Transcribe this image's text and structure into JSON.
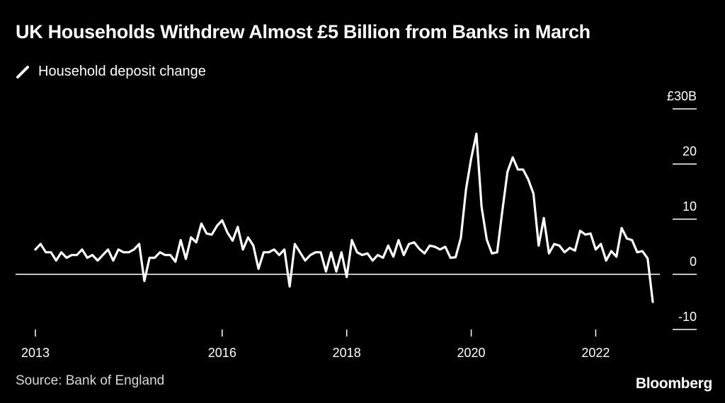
{
  "header": {
    "title": "UK Households Withdrew Almost £5 Billion from Banks in March"
  },
  "legend": {
    "label": "Household deposit change"
  },
  "footer": {
    "source": "Source: Bank of England",
    "brand": "Bloomberg"
  },
  "colors": {
    "background": "#000000",
    "line": "#ffffff",
    "text": "#ffffff"
  },
  "chart_data": {
    "type": "line",
    "title": "UK Households Withdrew Almost £5 Billion from Banks in March",
    "xlabel": "",
    "ylabel": "",
    "y_unit": "£ billions",
    "ylim": [
      -10,
      30
    ],
    "y_ticks": [
      {
        "value": 30,
        "label": "£30B"
      },
      {
        "value": 20,
        "label": "20"
      },
      {
        "value": 10,
        "label": "10"
      },
      {
        "value": 0,
        "label": "0"
      },
      {
        "value": -10,
        "label": "-10"
      }
    ],
    "x_ticks": [
      {
        "value": 2013.0,
        "label": "2013"
      },
      {
        "value": 2016.0,
        "label": "2016"
      },
      {
        "value": 2018.0,
        "label": "2018"
      },
      {
        "value": 2020.0,
        "label": "2020"
      },
      {
        "value": 2022.0,
        "label": "2022"
      }
    ],
    "x_start": 2013.0,
    "x_step_years": 0.08333,
    "series": [
      {
        "name": "Household deposit change",
        "values": [
          4.5,
          5.5,
          4,
          4,
          2.5,
          4,
          3,
          3.5,
          3.5,
          4.5,
          3,
          3.5,
          2.5,
          3.5,
          4.5,
          2.5,
          4.5,
          4,
          4,
          4.5,
          5.5,
          -1.2,
          3,
          3,
          4,
          3.5,
          3.5,
          2.3,
          6.2,
          2.8,
          6.7,
          5.8,
          9.2,
          7.4,
          7.2,
          8.8,
          9.8,
          7.6,
          6.1,
          8.6,
          4.5,
          6.7,
          5.2,
          1,
          4,
          4,
          4.5,
          3.5,
          4.5,
          -2.2,
          5.5,
          4,
          2.5,
          3.5,
          4,
          4,
          0.5,
          4,
          0.5,
          4,
          -0.5,
          6.2,
          4,
          3.5,
          3.8,
          2.5,
          3.5,
          3,
          5.2,
          3.2,
          6.2,
          3.5,
          5.5,
          5.8,
          4.6,
          3.8,
          5.2,
          5,
          4.5,
          5,
          3,
          3.1,
          6.6,
          15.4,
          21,
          25.5,
          12.2,
          6.3,
          3.8,
          4,
          11.5,
          18.6,
          21.2,
          19,
          19,
          17.2,
          14.6,
          5.2,
          10.2,
          3.8,
          5.5,
          5.2,
          4,
          4.8,
          4.3,
          7.9,
          7.2,
          7.4,
          4.5,
          5.5,
          2.5,
          4.2,
          3.2,
          8.4,
          6.5,
          6.2,
          4,
          4.2,
          2.9,
          -5
        ]
      }
    ]
  }
}
